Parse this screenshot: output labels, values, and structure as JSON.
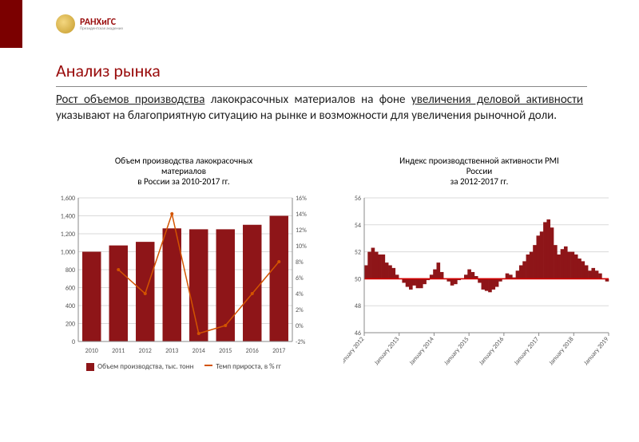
{
  "header": {
    "logo_text": "РАНХиГС",
    "logo_subtitle": "Президентская академия"
  },
  "title": "Анализ рынка",
  "paragraph": {
    "hl1": "Рост объемов производства",
    "mid1": " лакокрасочных материалов на фоне ",
    "hl2": "увеличения деловой активности",
    "mid2": " указывают на благоприятную ситуацию на рынке и возможности для увеличения рыночной доли."
  },
  "chart1": {
    "type": "bar+line-dual-axis",
    "title_line1": "Объем производства лакокрасочных",
    "title_line2": "материалов",
    "title_line3": "в России за 2010-2017 гг.",
    "x_labels": [
      "2010",
      "2011",
      "2012",
      "2013",
      "2014",
      "2015",
      "2016",
      "2017"
    ],
    "bar_values": [
      1000,
      1070,
      1110,
      1260,
      1250,
      1250,
      1300,
      1400
    ],
    "y1_min": 0,
    "y1_max": 1600,
    "y1_step": 200,
    "line_values": [
      null,
      7,
      4,
      14,
      -1,
      0,
      4,
      8
    ],
    "y2_min": -2,
    "y2_max": 16,
    "y2_step": 2,
    "bar_color": "#8e1518",
    "line_color": "#d35400",
    "grid_color": "#d9d9d9",
    "axis_color": "#888888",
    "label_color": "#555555",
    "label_fontsize": 8,
    "bar_width": 0.7,
    "legend1": "Объем производства, тыс. тонн",
    "legend2": "Темп прироста, в % гг"
  },
  "chart2": {
    "type": "bar-baseline50",
    "title_line1": "Индекс производственной активности PMI",
    "title_line2": "России",
    "title_line3": "за 2012-2017 гг.",
    "x_labels": [
      "January 2012",
      "January 2013",
      "January 2014",
      "January 2015",
      "January 2016",
      "January 2017",
      "January 2018",
      "January 2019"
    ],
    "values": [
      51.0,
      52.0,
      52.3,
      52.0,
      51.8,
      51.8,
      51.2,
      51.0,
      50.8,
      50.3,
      50.0,
      49.7,
      49.4,
      49.2,
      49.5,
      49.3,
      49.3,
      49.6,
      49.9,
      50.3,
      50.7,
      51.2,
      50.5,
      50.0,
      49.8,
      49.5,
      49.6,
      49.9,
      50.0,
      50.3,
      50.7,
      50.5,
      50.2,
      49.7,
      49.2,
      49.1,
      49.0,
      49.2,
      49.4,
      49.8,
      50.0,
      50.4,
      50.3,
      50.1,
      50.6,
      51.0,
      51.3,
      51.8,
      52.0,
      52.5,
      53.2,
      53.5,
      54.2,
      54.4,
      53.8,
      52.5,
      51.8,
      52.2,
      52.4,
      52.0,
      52.0,
      51.8,
      51.5,
      51.3,
      51.0,
      50.6,
      50.8,
      50.6,
      50.4,
      50.0,
      49.8
    ],
    "y_min": 46,
    "y_max": 56,
    "y_step": 2,
    "baseline": 50,
    "bar_color": "#8e1518",
    "baseline_color": "#d30000",
    "grid_color": "#d9d9d9",
    "axis_color": "#888888",
    "label_color": "#555555",
    "label_fontsize": 8,
    "bar_width": 1.0
  }
}
